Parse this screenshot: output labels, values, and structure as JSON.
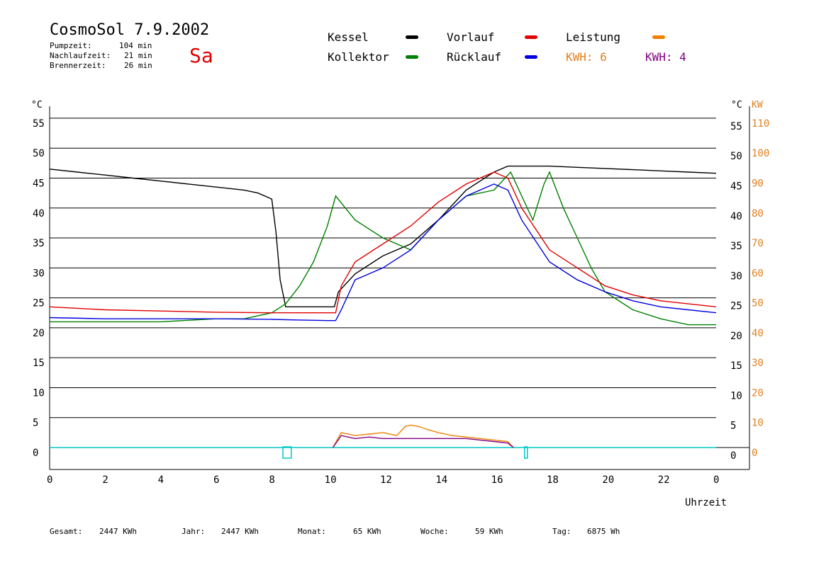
{
  "header": {
    "title": "CosmoSol 7.9.2002",
    "day": "Sa",
    "pumpzeit_label": "Pumpzeit:",
    "pumpzeit_value": "104 min",
    "nachlaufzeit_label": "Nachlaufzeit:",
    "nachlaufzeit_value": "21 min",
    "brennerzeit_label": "Brennerzeit:",
    "brennerzeit_value": "26 min"
  },
  "legend": {
    "kessel": "Kessel",
    "kollektor": "Kollektor",
    "vorlauf": "Vorlauf",
    "ruecklauf": "Rücklauf",
    "leistung": "Leistung",
    "kwh1": "KWH: 6",
    "kwh2": "KWH: 4"
  },
  "colors": {
    "kessel": "#000000",
    "kollektor": "#008000",
    "vorlauf": "#e00000",
    "ruecklauf": "#0000e0",
    "leistung": "#f08000",
    "kwh2": "#800080",
    "pump": "#00c8c8"
  },
  "footer": {
    "gesamt_label": "Gesamt:",
    "gesamt_value": "2447 KWh",
    "jahr_label": "Jahr:",
    "jahr_value": "2447 KWh",
    "monat_label": "Monat:",
    "monat_value": "65 KWh",
    "woche_label": "Woche:",
    "woche_value": "59 KWh",
    "tag_label": "Tag:",
    "tag_value": "6875 Wh"
  },
  "chart_data": {
    "type": "line",
    "xlabel": "Uhrzeit",
    "ylabel_left": "°C",
    "ylabel_right": "°C",
    "ylabel_right2": "KW",
    "x_ticks": [
      "0",
      "2",
      "4",
      "6",
      "8",
      "10",
      "12",
      "14",
      "16",
      "18",
      "20",
      "22",
      "0"
    ],
    "y_ticks": [
      "0",
      "5",
      "10",
      "15",
      "20",
      "25",
      "30",
      "35",
      "40",
      "45",
      "50",
      "55"
    ],
    "y2_ticks": [
      "0",
      "10",
      "20",
      "30",
      "40",
      "50",
      "60",
      "70",
      "80",
      "90",
      "100",
      "110"
    ],
    "xlim": [
      0,
      24
    ],
    "ylim": [
      0,
      57
    ],
    "grid": true,
    "series": [
      {
        "name": "Kessel",
        "color": "#000000",
        "x": [
          0,
          1,
          2,
          3,
          4,
          5,
          6,
          7,
          7.5,
          8,
          8.15,
          8.3,
          8.5,
          9,
          10,
          10.25,
          10.4,
          11,
          12,
          13,
          14,
          15,
          16,
          16.5,
          17,
          18,
          19,
          20,
          21,
          22,
          23,
          24
        ],
        "y": [
          46.5,
          46,
          45.5,
          45,
          44.5,
          44,
          43.5,
          43,
          42.5,
          41.5,
          36,
          28,
          23.5,
          23.5,
          23.5,
          23.5,
          26,
          29,
          32,
          34,
          38,
          43,
          46,
          47,
          47,
          47,
          46.8,
          46.6,
          46.4,
          46.2,
          46,
          45.8
        ]
      },
      {
        "name": "Kollektor",
        "color": "#008000",
        "x": [
          0,
          2,
          4,
          6,
          7,
          8,
          8.5,
          9,
          9.5,
          10,
          10.3,
          11,
          12,
          13,
          14,
          15,
          16,
          16.6,
          17,
          17.4,
          17.8,
          18,
          18.5,
          19,
          19.5,
          20,
          21,
          22,
          23,
          24
        ],
        "y": [
          21,
          21,
          21,
          21.5,
          21.5,
          22.5,
          24,
          27,
          31,
          37,
          42,
          38,
          35,
          33,
          38,
          42,
          43,
          46,
          42,
          38,
          44,
          46,
          40,
          35,
          30,
          26,
          23,
          21.5,
          20.5,
          20.5
        ]
      },
      {
        "name": "Vorlauf",
        "color": "#e00000",
        "x": [
          0,
          2,
          4,
          6,
          8,
          9,
          10,
          10.3,
          10.5,
          11,
          12,
          13,
          14,
          15,
          16,
          16.5,
          17,
          18,
          19,
          20,
          21,
          22,
          23,
          24
        ],
        "y": [
          23.5,
          23,
          22.8,
          22.6,
          22.5,
          22.5,
          22.5,
          22.5,
          27,
          31,
          34,
          37,
          41,
          44,
          46,
          45,
          40,
          33,
          30,
          27,
          25.5,
          24.5,
          24,
          23.5
        ]
      },
      {
        "name": "Rücklauf",
        "color": "#0000e0",
        "x": [
          0,
          2,
          4,
          6,
          8,
          9,
          10,
          10.3,
          10.5,
          11,
          12,
          13,
          14,
          15,
          16,
          16.5,
          17,
          18,
          19,
          20,
          21,
          22,
          23,
          24
        ],
        "y": [
          21.7,
          21.5,
          21.5,
          21.5,
          21.4,
          21.3,
          21.2,
          21.2,
          23,
          28,
          30,
          33,
          38,
          42,
          44,
          43,
          38,
          31,
          28,
          26,
          24.5,
          23.5,
          23,
          22.5
        ]
      },
      {
        "name": "Leistung",
        "color": "#f08000",
        "axis": "right",
        "x": [
          10.2,
          10.5,
          11,
          11.5,
          12,
          12.5,
          12.8,
          13,
          13.3,
          13.6,
          14,
          14.5,
          15,
          15.5,
          16,
          16.5,
          16.7
        ],
        "y": [
          0,
          5,
          4,
          4.5,
          5,
          4,
          7,
          7.5,
          7,
          6,
          5,
          4,
          3.5,
          3,
          2.5,
          2,
          0
        ]
      },
      {
        "name": "KWH",
        "color": "#800080",
        "axis": "right",
        "x": [
          10.2,
          10.5,
          11,
          11.5,
          12,
          12.5,
          13,
          13.5,
          14,
          14.5,
          15,
          15.5,
          16,
          16.5,
          16.7
        ],
        "y": [
          0,
          4,
          3,
          3.5,
          3,
          3,
          3,
          3,
          3,
          3,
          3,
          2.5,
          2,
          1.5,
          0
        ]
      }
    ],
    "pump_markers": [
      {
        "x_start": 8.4,
        "x_end": 8.7
      },
      {
        "x_start": 17.1,
        "x_end": 17.2
      }
    ]
  }
}
